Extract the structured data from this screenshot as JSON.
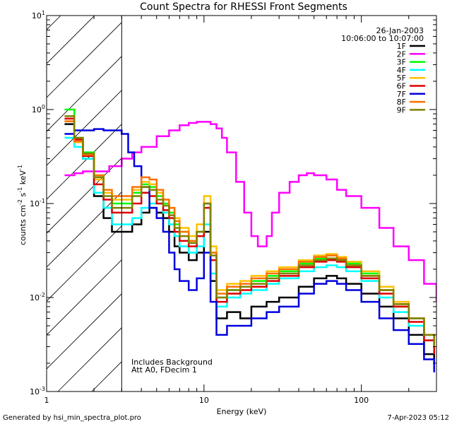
{
  "chart_data": {
    "type": "line",
    "title": "Count Spectra for RHESSI Front Segments",
    "xlabel": "Energy (keV)",
    "ylabel_parts": [
      "counts cm",
      "-2",
      " s",
      "-1",
      " keV",
      "-1"
    ],
    "xscale": "log",
    "yscale": "log",
    "xlim": [
      1,
      300
    ],
    "ylim": [
      0.001,
      10
    ],
    "x_tick_labels": [
      "1",
      "10",
      "100"
    ],
    "y_tick_labels": [
      {
        "base": "10",
        "exp": "-3"
      },
      {
        "base": "10",
        "exp": "-2"
      },
      {
        "base": "10",
        "exp": "-1"
      },
      {
        "base": "10",
        "exp": "0"
      },
      {
        "base": "10",
        "exp": "1"
      }
    ],
    "hatch_region_kev": [
      1,
      3
    ],
    "legend_header": [
      "26-Jan-2003",
      "10:06:00 to 10:07:00"
    ],
    "legend_location": "top-right",
    "annotations": [
      "Includes Background",
      "Att A0, FDecim 1"
    ],
    "series": [
      {
        "name": "1F",
        "color": "#000000",
        "x": [
          1.3,
          1.5,
          1.7,
          2.0,
          2.3,
          2.6,
          3.0,
          3.5,
          4.0,
          4.5,
          5.0,
          5.5,
          6.0,
          6.5,
          7.0,
          8.0,
          9.0,
          10.0,
          11.0,
          12.0,
          14.0,
          17.0,
          20.0,
          25.0,
          30.0,
          40.0,
          50.0,
          60.0,
          70.0,
          80.0,
          100.0,
          130.0,
          160.0,
          200.0,
          250.0,
          290.0
        ],
        "y": [
          0.7,
          0.45,
          0.3,
          0.12,
          0.07,
          0.05,
          0.05,
          0.06,
          0.08,
          0.09,
          0.08,
          0.07,
          0.05,
          0.035,
          0.03,
          0.025,
          0.03,
          0.05,
          0.015,
          0.006,
          0.007,
          0.006,
          0.008,
          0.009,
          0.01,
          0.013,
          0.016,
          0.017,
          0.016,
          0.014,
          0.011,
          0.008,
          0.006,
          0.004,
          0.0025,
          0.002
        ]
      },
      {
        "name": "2F",
        "color": "#ff00ff",
        "x": [
          1.3,
          1.5,
          1.7,
          2.0,
          2.5,
          3.0,
          3.5,
          4.0,
          5.0,
          6.0,
          7.0,
          8.0,
          9.0,
          10.0,
          11.0,
          12.0,
          13.0,
          14.0,
          16.0,
          18.0,
          20.0,
          22.0,
          23.5,
          25.0,
          27.0,
          30.0,
          35.0,
          40.0,
          45.0,
          50.0,
          60.0,
          70.0,
          80.0,
          100.0,
          130.0,
          160.0,
          200.0,
          250.0,
          300.0
        ],
        "y": [
          0.2,
          0.21,
          0.22,
          0.22,
          0.25,
          0.3,
          0.35,
          0.4,
          0.52,
          0.6,
          0.68,
          0.72,
          0.74,
          0.74,
          0.7,
          0.63,
          0.5,
          0.35,
          0.17,
          0.08,
          0.045,
          0.035,
          0.035,
          0.045,
          0.08,
          0.13,
          0.17,
          0.2,
          0.21,
          0.2,
          0.18,
          0.14,
          0.12,
          0.09,
          0.055,
          0.035,
          0.025,
          0.014,
          0.009
        ]
      },
      {
        "name": "3F",
        "color": "#00ff00",
        "x": [
          1.3,
          1.5,
          1.7,
          2.0,
          2.3,
          2.6,
          3.0,
          3.5,
          4.0,
          4.5,
          5.0,
          5.5,
          6.0,
          6.5,
          7.0,
          8.0,
          9.0,
          10.0,
          11.0,
          12.0,
          14.0,
          17.0,
          20.0,
          25.0,
          30.0,
          40.0,
          50.0,
          60.0,
          70.0,
          80.0,
          100.0,
          130.0,
          160.0,
          200.0,
          250.0,
          290.0
        ],
        "y": [
          1.0,
          0.5,
          0.35,
          0.2,
          0.13,
          0.1,
          0.1,
          0.13,
          0.16,
          0.15,
          0.12,
          0.1,
          0.08,
          0.06,
          0.05,
          0.04,
          0.05,
          0.1,
          0.03,
          0.01,
          0.012,
          0.013,
          0.015,
          0.017,
          0.019,
          0.023,
          0.026,
          0.028,
          0.026,
          0.023,
          0.018,
          0.012,
          0.008,
          0.006,
          0.004,
          0.003
        ]
      },
      {
        "name": "4F",
        "color": "#00ffff",
        "x": [
          1.3,
          1.5,
          1.7,
          2.0,
          2.3,
          2.6,
          3.0,
          3.5,
          4.0,
          4.5,
          5.0,
          5.5,
          6.0,
          6.5,
          7.0,
          8.0,
          9.0,
          10.0,
          11.0,
          12.0,
          14.0,
          17.0,
          20.0,
          25.0,
          30.0,
          40.0,
          50.0,
          60.0,
          70.0,
          80.0,
          100.0,
          130.0,
          160.0,
          200.0,
          250.0,
          290.0
        ],
        "y": [
          0.5,
          0.4,
          0.3,
          0.13,
          0.09,
          0.06,
          0.06,
          0.07,
          0.09,
          0.1,
          0.1,
          0.08,
          0.06,
          0.045,
          0.035,
          0.03,
          0.035,
          0.06,
          0.018,
          0.008,
          0.01,
          0.011,
          0.012,
          0.014,
          0.016,
          0.019,
          0.021,
          0.022,
          0.021,
          0.019,
          0.015,
          0.01,
          0.007,
          0.005,
          0.0035,
          0.0025
        ]
      },
      {
        "name": "5F",
        "color": "#ffc000",
        "x": [
          1.3,
          1.5,
          1.7,
          2.0,
          2.3,
          2.6,
          3.0,
          3.5,
          4.0,
          4.5,
          5.0,
          5.5,
          6.0,
          6.5,
          7.0,
          8.0,
          9.0,
          10.0,
          11.0,
          12.0,
          14.0,
          17.0,
          20.0,
          25.0,
          30.0,
          40.0,
          50.0,
          60.0,
          70.0,
          80.0,
          100.0,
          130.0,
          160.0,
          200.0,
          250.0,
          290.0
        ],
        "y": [
          0.75,
          0.45,
          0.33,
          0.18,
          0.13,
          0.11,
          0.11,
          0.14,
          0.17,
          0.16,
          0.13,
          0.11,
          0.09,
          0.07,
          0.055,
          0.045,
          0.06,
          0.12,
          0.035,
          0.012,
          0.014,
          0.015,
          0.017,
          0.019,
          0.021,
          0.025,
          0.028,
          0.029,
          0.027,
          0.024,
          0.019,
          0.013,
          0.009,
          0.006,
          0.004,
          0.003
        ]
      },
      {
        "name": "6F",
        "color": "#dd0000",
        "x": [
          1.3,
          1.5,
          1.7,
          2.0,
          2.3,
          2.6,
          3.0,
          3.5,
          4.0,
          4.5,
          5.0,
          5.5,
          6.0,
          6.5,
          7.0,
          8.0,
          9.0,
          10.0,
          11.0,
          12.0,
          14.0,
          17.0,
          20.0,
          25.0,
          30.0,
          40.0,
          50.0,
          60.0,
          70.0,
          80.0,
          100.0,
          130.0,
          160.0,
          200.0,
          250.0,
          290.0
        ],
        "y": [
          0.8,
          0.48,
          0.32,
          0.16,
          0.11,
          0.08,
          0.08,
          0.1,
          0.13,
          0.12,
          0.1,
          0.085,
          0.07,
          0.05,
          0.04,
          0.035,
          0.045,
          0.09,
          0.025,
          0.009,
          0.011,
          0.012,
          0.013,
          0.015,
          0.017,
          0.021,
          0.024,
          0.025,
          0.024,
          0.021,
          0.016,
          0.011,
          0.008,
          0.0055,
          0.0035,
          0.0025
        ]
      },
      {
        "name": "7F",
        "color": "#0000dd",
        "x": [
          1.3,
          1.5,
          1.7,
          2.0,
          2.3,
          2.6,
          3.0,
          3.3,
          3.6,
          4.0,
          4.5,
          5.0,
          5.5,
          6.0,
          6.5,
          7.0,
          8.0,
          9.0,
          10.0,
          11.0,
          12.0,
          14.0,
          17.0,
          20.0,
          25.0,
          30.0,
          40.0,
          50.0,
          60.0,
          70.0,
          80.0,
          100.0,
          130.0,
          160.0,
          200.0,
          250.0,
          290.0
        ],
        "y": [
          0.55,
          0.6,
          0.6,
          0.62,
          0.6,
          0.6,
          0.55,
          0.35,
          0.25,
          0.15,
          0.09,
          0.07,
          0.05,
          0.03,
          0.02,
          0.015,
          0.012,
          0.016,
          0.03,
          0.009,
          0.004,
          0.005,
          0.005,
          0.006,
          0.007,
          0.008,
          0.011,
          0.014,
          0.015,
          0.014,
          0.012,
          0.009,
          0.006,
          0.0045,
          0.0032,
          0.0022,
          0.0016
        ]
      },
      {
        "name": "8F",
        "color": "#ff7000",
        "x": [
          1.3,
          1.5,
          1.7,
          2.0,
          2.3,
          2.6,
          3.0,
          3.5,
          4.0,
          4.5,
          5.0,
          5.5,
          6.0,
          6.5,
          7.0,
          8.0,
          9.0,
          10.0,
          11.0,
          12.0,
          14.0,
          17.0,
          20.0,
          25.0,
          30.0,
          40.0,
          50.0,
          60.0,
          70.0,
          80.0,
          100.0,
          130.0,
          160.0,
          200.0,
          250.0,
          290.0
        ],
        "y": [
          0.75,
          0.46,
          0.33,
          0.2,
          0.14,
          0.12,
          0.12,
          0.15,
          0.19,
          0.18,
          0.14,
          0.11,
          0.09,
          0.065,
          0.05,
          0.04,
          0.05,
          0.1,
          0.03,
          0.011,
          0.013,
          0.014,
          0.016,
          0.018,
          0.02,
          0.024,
          0.027,
          0.028,
          0.026,
          0.022,
          0.017,
          0.012,
          0.0085,
          0.006,
          0.004,
          0.003
        ]
      },
      {
        "name": "9F",
        "color": "#808000",
        "x": [
          1.3,
          1.5,
          1.7,
          2.0,
          2.3,
          2.6,
          3.0,
          3.5,
          4.0,
          4.5,
          5.0,
          5.5,
          6.0,
          6.5,
          7.0,
          8.0,
          9.0,
          10.0,
          11.0,
          12.0,
          14.0,
          17.0,
          20.0,
          25.0,
          30.0,
          40.0,
          50.0,
          60.0,
          70.0,
          80.0,
          100.0,
          130.0,
          160.0,
          200.0,
          250.0,
          290.0
        ],
        "y": [
          0.85,
          0.5,
          0.34,
          0.19,
          0.12,
          0.09,
          0.09,
          0.12,
          0.15,
          0.14,
          0.11,
          0.095,
          0.075,
          0.055,
          0.045,
          0.038,
          0.05,
          0.1,
          0.028,
          0.01,
          0.012,
          0.013,
          0.014,
          0.016,
          0.018,
          0.022,
          0.025,
          0.026,
          0.025,
          0.022,
          0.017,
          0.012,
          0.0085,
          0.006,
          0.004,
          0.003
        ]
      }
    ]
  },
  "footer": {
    "generated_by": "Generated by  hsi_min_spectra_plot.pro",
    "timestamp": "7-Apr-2023 05:12"
  }
}
